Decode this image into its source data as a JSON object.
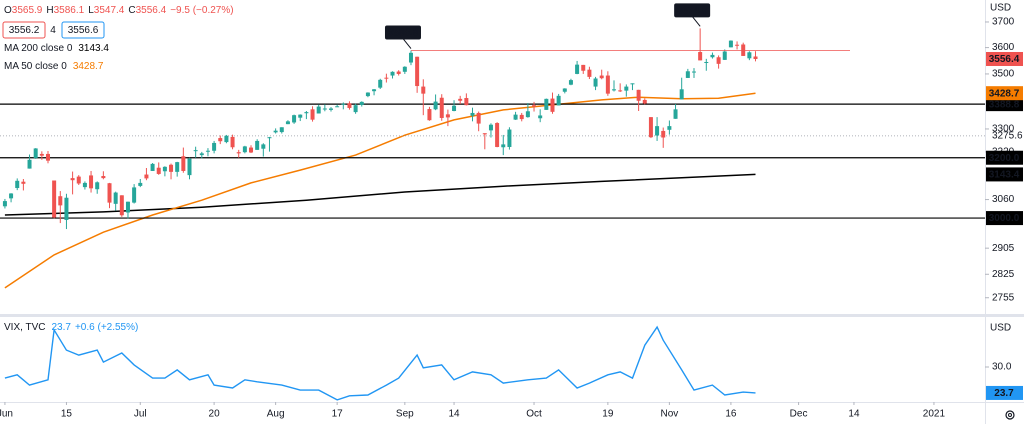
{
  "chart_data": [
    {
      "type": "candlestick",
      "log_scale": true,
      "currency": "USD",
      "xlim": [
        -0.8,
        159.3
      ],
      "ylim": [
        2704.6,
        3788
      ],
      "yticks": [
        3700,
        3600,
        3500,
        3300,
        3220,
        3060,
        2905,
        2825,
        2755
      ],
      "up_color": "#26a69a",
      "down_color": "#ef5350",
      "ohlc_legend": [
        [
          "O",
          "3565.9"
        ],
        [
          "H",
          "3586.1"
        ],
        [
          "L",
          "3547.4"
        ],
        [
          "C",
          "3556.4"
        ]
      ],
      "change": "−9.5 (−0.27%)",
      "bid": "3556.2",
      "spread": "4",
      "ask": "3556.6",
      "ohlc": [
        [
          3038,
          3062,
          3031,
          3055
        ],
        [
          3064,
          3081,
          3051,
          3080
        ],
        [
          3098,
          3130,
          3091,
          3122
        ],
        [
          3119,
          3128,
          3090,
          3112
        ],
        [
          3163,
          3211,
          3163,
          3193
        ],
        [
          3199,
          3233,
          3196,
          3232
        ],
        [
          3213,
          3222,
          3193,
          3207
        ],
        [
          3213,
          3223,
          3181,
          3190
        ],
        [
          3123,
          3123,
          2999,
          3002
        ],
        [
          3071,
          3088,
          2984,
          3041
        ],
        [
          2994,
          3079,
          2965,
          3066
        ],
        [
          3131,
          3153,
          3077,
          3124
        ],
        [
          3136,
          3141,
          3108,
          3113
        ],
        [
          3101,
          3120,
          3093,
          3115
        ],
        [
          3140,
          3155,
          3083,
          3097
        ],
        [
          3094,
          3120,
          3079,
          3117
        ],
        [
          3138,
          3154,
          3127,
          3131
        ],
        [
          3114,
          3115,
          3032,
          3050
        ],
        [
          3046,
          3086,
          3024,
          3083
        ],
        [
          3074,
          3074,
          3004,
          3009
        ],
        [
          3018,
          3053,
          2999,
          3053
        ],
        [
          3050,
          3111,
          3047,
          3100
        ],
        [
          3105,
          3128,
          3101,
          3115
        ],
        [
          3143,
          3165,
          3124,
          3130
        ],
        [
          3155,
          3182,
          3155,
          3179
        ],
        [
          3166,
          3184,
          3142,
          3145
        ],
        [
          3154,
          3171,
          3137,
          3169
        ],
        [
          3176,
          3180,
          3127,
          3152
        ],
        [
          3152,
          3186,
          3136,
          3185
        ],
        [
          3205,
          3235,
          3149,
          3155
        ],
        [
          3141,
          3200,
          3127,
          3197
        ],
        [
          3225,
          3238,
          3200,
          3226
        ],
        [
          3209,
          3220,
          3198,
          3215
        ],
        [
          3224,
          3233,
          3205,
          3224
        ],
        [
          3224,
          3258,
          3215,
          3251
        ],
        [
          3268,
          3277,
          3247,
          3257
        ],
        [
          3254,
          3279,
          3250,
          3276
        ],
        [
          3272,
          3280,
          3229,
          3236
        ],
        [
          3219,
          3227,
          3200,
          3215
        ],
        [
          3219,
          3241,
          3215,
          3239
        ],
        [
          3235,
          3243,
          3216,
          3218
        ],
        [
          3227,
          3264,
          3227,
          3258
        ],
        [
          3231,
          3250,
          3204,
          3246
        ],
        [
          3270,
          3272,
          3221,
          3271
        ],
        [
          3288,
          3302,
          3284,
          3294
        ],
        [
          3289,
          3306,
          3284,
          3306
        ],
        [
          3317,
          3331,
          3317,
          3327
        ],
        [
          3323,
          3351,
          3318,
          3349
        ],
        [
          3340,
          3352,
          3328,
          3351
        ],
        [
          3356,
          3364,
          3335,
          3360
        ],
        [
          3370,
          3381,
          3326,
          3333
        ],
        [
          3355,
          3387,
          3355,
          3380
        ],
        [
          3372,
          3388,
          3363,
          3373
        ],
        [
          3368,
          3378,
          3362,
          3373
        ],
        [
          3380,
          3387,
          3379,
          3381
        ],
        [
          3387,
          3395,
          3370,
          3390
        ],
        [
          3392,
          3399,
          3369,
          3375
        ],
        [
          3360,
          3390,
          3354,
          3385
        ],
        [
          3386,
          3399,
          3380,
          3397
        ],
        [
          3418,
          3432,
          3414,
          3431
        ],
        [
          3436,
          3444,
          3421,
          3443
        ],
        [
          3449,
          3482,
          3444,
          3478
        ],
        [
          3486,
          3501,
          3468,
          3484
        ],
        [
          3494,
          3510,
          3483,
          3508
        ],
        [
          3509,
          3514,
          3494,
          3500
        ],
        [
          3508,
          3529,
          3500,
          3527
        ],
        [
          3543,
          3588.8,
          3533,
          3580
        ],
        [
          3565,
          3565,
          3430,
          3455
        ],
        [
          3453,
          3480,
          3349,
          3427
        ],
        [
          3371,
          3379,
          3329,
          3331
        ],
        [
          3370,
          3424,
          3367,
          3398
        ],
        [
          3412,
          3425,
          3329,
          3339
        ],
        [
          3352,
          3369,
          3310,
          3341
        ],
        [
          3364,
          3403,
          3363,
          3383
        ],
        [
          3408,
          3419,
          3389,
          3401
        ],
        [
          3411,
          3428,
          3384,
          3385
        ],
        [
          3347,
          3376,
          3327,
          3357
        ],
        [
          3357,
          3362,
          3292,
          3319
        ],
        [
          3285,
          3285,
          3229,
          3281
        ],
        [
          3295,
          3320,
          3270,
          3315
        ],
        [
          3321,
          3324,
          3236,
          3237
        ],
        [
          3236,
          3279,
          3209,
          3246
        ],
        [
          3237,
          3306,
          3228,
          3298
        ],
        [
          3333,
          3361,
          3332,
          3351
        ],
        [
          3350,
          3357,
          3327,
          3335
        ],
        [
          3342,
          3393,
          3340,
          3363
        ],
        [
          3385,
          3397,
          3362,
          3380
        ],
        [
          3338,
          3370,
          3324,
          3348
        ],
        [
          3368,
          3409,
          3368,
          3408
        ],
        [
          3409,
          3431,
          3354,
          3361
        ],
        [
          3384,
          3426,
          3384,
          3419
        ],
        [
          3434,
          3447,
          3428,
          3446
        ],
        [
          3460,
          3482,
          3458,
          3477
        ],
        [
          3500,
          3549,
          3499,
          3535
        ],
        [
          3534,
          3534,
          3500,
          3512
        ],
        [
          3516,
          3527,
          3481,
          3489
        ],
        [
          3453,
          3489,
          3440,
          3483
        ],
        [
          3494,
          3516,
          3480,
          3484
        ],
        [
          3494,
          3510,
          3419,
          3427
        ],
        [
          3439,
          3476,
          3435,
          3443
        ],
        [
          3439,
          3465,
          3433,
          3436
        ],
        [
          3438,
          3461,
          3416,
          3453
        ],
        [
          3464,
          3465,
          3440,
          3465
        ],
        [
          3441,
          3441,
          3364,
          3401
        ],
        [
          3404,
          3410,
          3388,
          3391
        ],
        [
          3342,
          3342,
          3268,
          3271
        ],
        [
          3277,
          3342,
          3258,
          3310
        ],
        [
          3293,
          3305,
          3234,
          3270
        ],
        [
          3297,
          3330,
          3280,
          3310
        ],
        [
          3336,
          3389,
          3336,
          3370
        ],
        [
          3406,
          3486,
          3406,
          3443
        ],
        [
          3485,
          3519,
          3485,
          3510
        ],
        [
          3509,
          3522,
          3485,
          3509
        ],
        [
          3583,
          3674.8,
          3551,
          3551
        ],
        [
          3544,
          3557,
          3512,
          3545
        ],
        [
          3563,
          3581,
          3558,
          3572
        ],
        [
          3563,
          3570,
          3520,
          3538
        ],
        [
          3553,
          3593,
          3553,
          3585
        ],
        [
          3601,
          3628,
          3601,
          3627
        ],
        [
          3611,
          3624,
          3593,
          3610
        ],
        [
          3612,
          3619,
          3568,
          3568
        ],
        [
          3559,
          3586,
          3552,
          3582
        ],
        [
          3565.9,
          3586.1,
          3547.4,
          3556.4
        ]
      ],
      "moving_averages": [
        {
          "name": "MA 200 close 0",
          "color": "#000000",
          "x": [
            0,
            16,
            32,
            49,
            65,
            81,
            97,
            110,
            122
          ],
          "values": [
            3010,
            3020,
            3035,
            3058,
            3085,
            3104,
            3120,
            3132,
            3143.4
          ]
        },
        {
          "name": "MA 50 close 0",
          "color": "#f57c00",
          "x": [
            0,
            8,
            16,
            24,
            32,
            40,
            48,
            57,
            65,
            73,
            81,
            89,
            97,
            103,
            110,
            116,
            122
          ],
          "values": [
            2784,
            2884,
            2955,
            3010,
            3058,
            3115,
            3158,
            3209,
            3278,
            3332,
            3368,
            3386,
            3404,
            3414,
            3408,
            3410,
            3428.7
          ]
        }
      ],
      "levels": [
        {
          "value": 3388.8,
          "color": "#000000"
        },
        {
          "value": 3275.6,
          "color": "#9598a1",
          "style": "dotted"
        },
        {
          "value": 3200,
          "label": "3200.0",
          "color": "#000000"
        },
        {
          "value": 3000,
          "label": "3000.0",
          "color": "#000000"
        }
      ],
      "callouts": [
        {
          "index": 66,
          "value": 3588.8
        },
        {
          "index": 113,
          "value": 3674.8
        }
      ]
    },
    {
      "type": "line",
      "name": "VIX, TVC",
      "currency": "USD",
      "color": "#2196f3",
      "change": "+0.6 (+2.55%)",
      "xlim": [
        -0.8,
        159.3
      ],
      "ylim": [
        21.5,
        41.9
      ],
      "yticks": [
        {
          "value": 30,
          "label": "30.0"
        }
      ],
      "x": [
        0,
        2,
        4,
        7,
        8,
        10,
        12,
        15,
        16,
        19,
        21,
        24,
        26,
        28,
        30,
        33,
        34,
        37,
        39,
        41,
        45,
        48,
        51,
        54,
        56,
        59,
        62,
        64,
        67,
        68,
        71,
        73,
        76,
        79,
        81,
        85,
        88,
        90,
        93,
        95,
        98,
        100,
        102,
        104,
        106,
        107,
        110,
        112,
        115,
        117,
        120,
        122
      ],
      "values": [
        27.3,
        28.1,
        25.6,
        26.9,
        39.0,
        34.1,
        32.9,
        34.1,
        31.2,
        33.4,
        30.5,
        27.3,
        27.3,
        29.3,
        26.9,
        28.1,
        25.6,
        24.9,
        26.9,
        26.4,
        25.6,
        24.4,
        24.4,
        22.0,
        23.0,
        23.2,
        25.6,
        27.3,
        32.9,
        29.8,
        30.5,
        26.9,
        28.8,
        28.1,
        26.1,
        26.9,
        27.3,
        29.3,
        24.9,
        26.1,
        28.1,
        28.8,
        27.3,
        35.3,
        39.7,
        36.5,
        29.3,
        24.4,
        25.6,
        23.2,
        23.9,
        23.7
      ],
      "xticks": [
        {
          "value": 0,
          "label": "Jun"
        },
        {
          "value": 10,
          "label": "15"
        },
        {
          "value": 22,
          "label": "Jul"
        },
        {
          "value": 34,
          "label": "20"
        },
        {
          "value": 44,
          "label": "Aug"
        },
        {
          "value": 54,
          "label": "17"
        },
        {
          "value": 65,
          "label": "Sep"
        },
        {
          "value": 73,
          "label": "14"
        },
        {
          "value": 86,
          "label": "Oct"
        },
        {
          "value": 98,
          "label": "19"
        },
        {
          "value": 108,
          "label": "Nov"
        },
        {
          "value": 118,
          "label": "16"
        },
        {
          "value": 129,
          "label": "Dec"
        },
        {
          "value": 138,
          "label": "14"
        },
        {
          "value": 151,
          "label": "2021"
        }
      ]
    }
  ]
}
